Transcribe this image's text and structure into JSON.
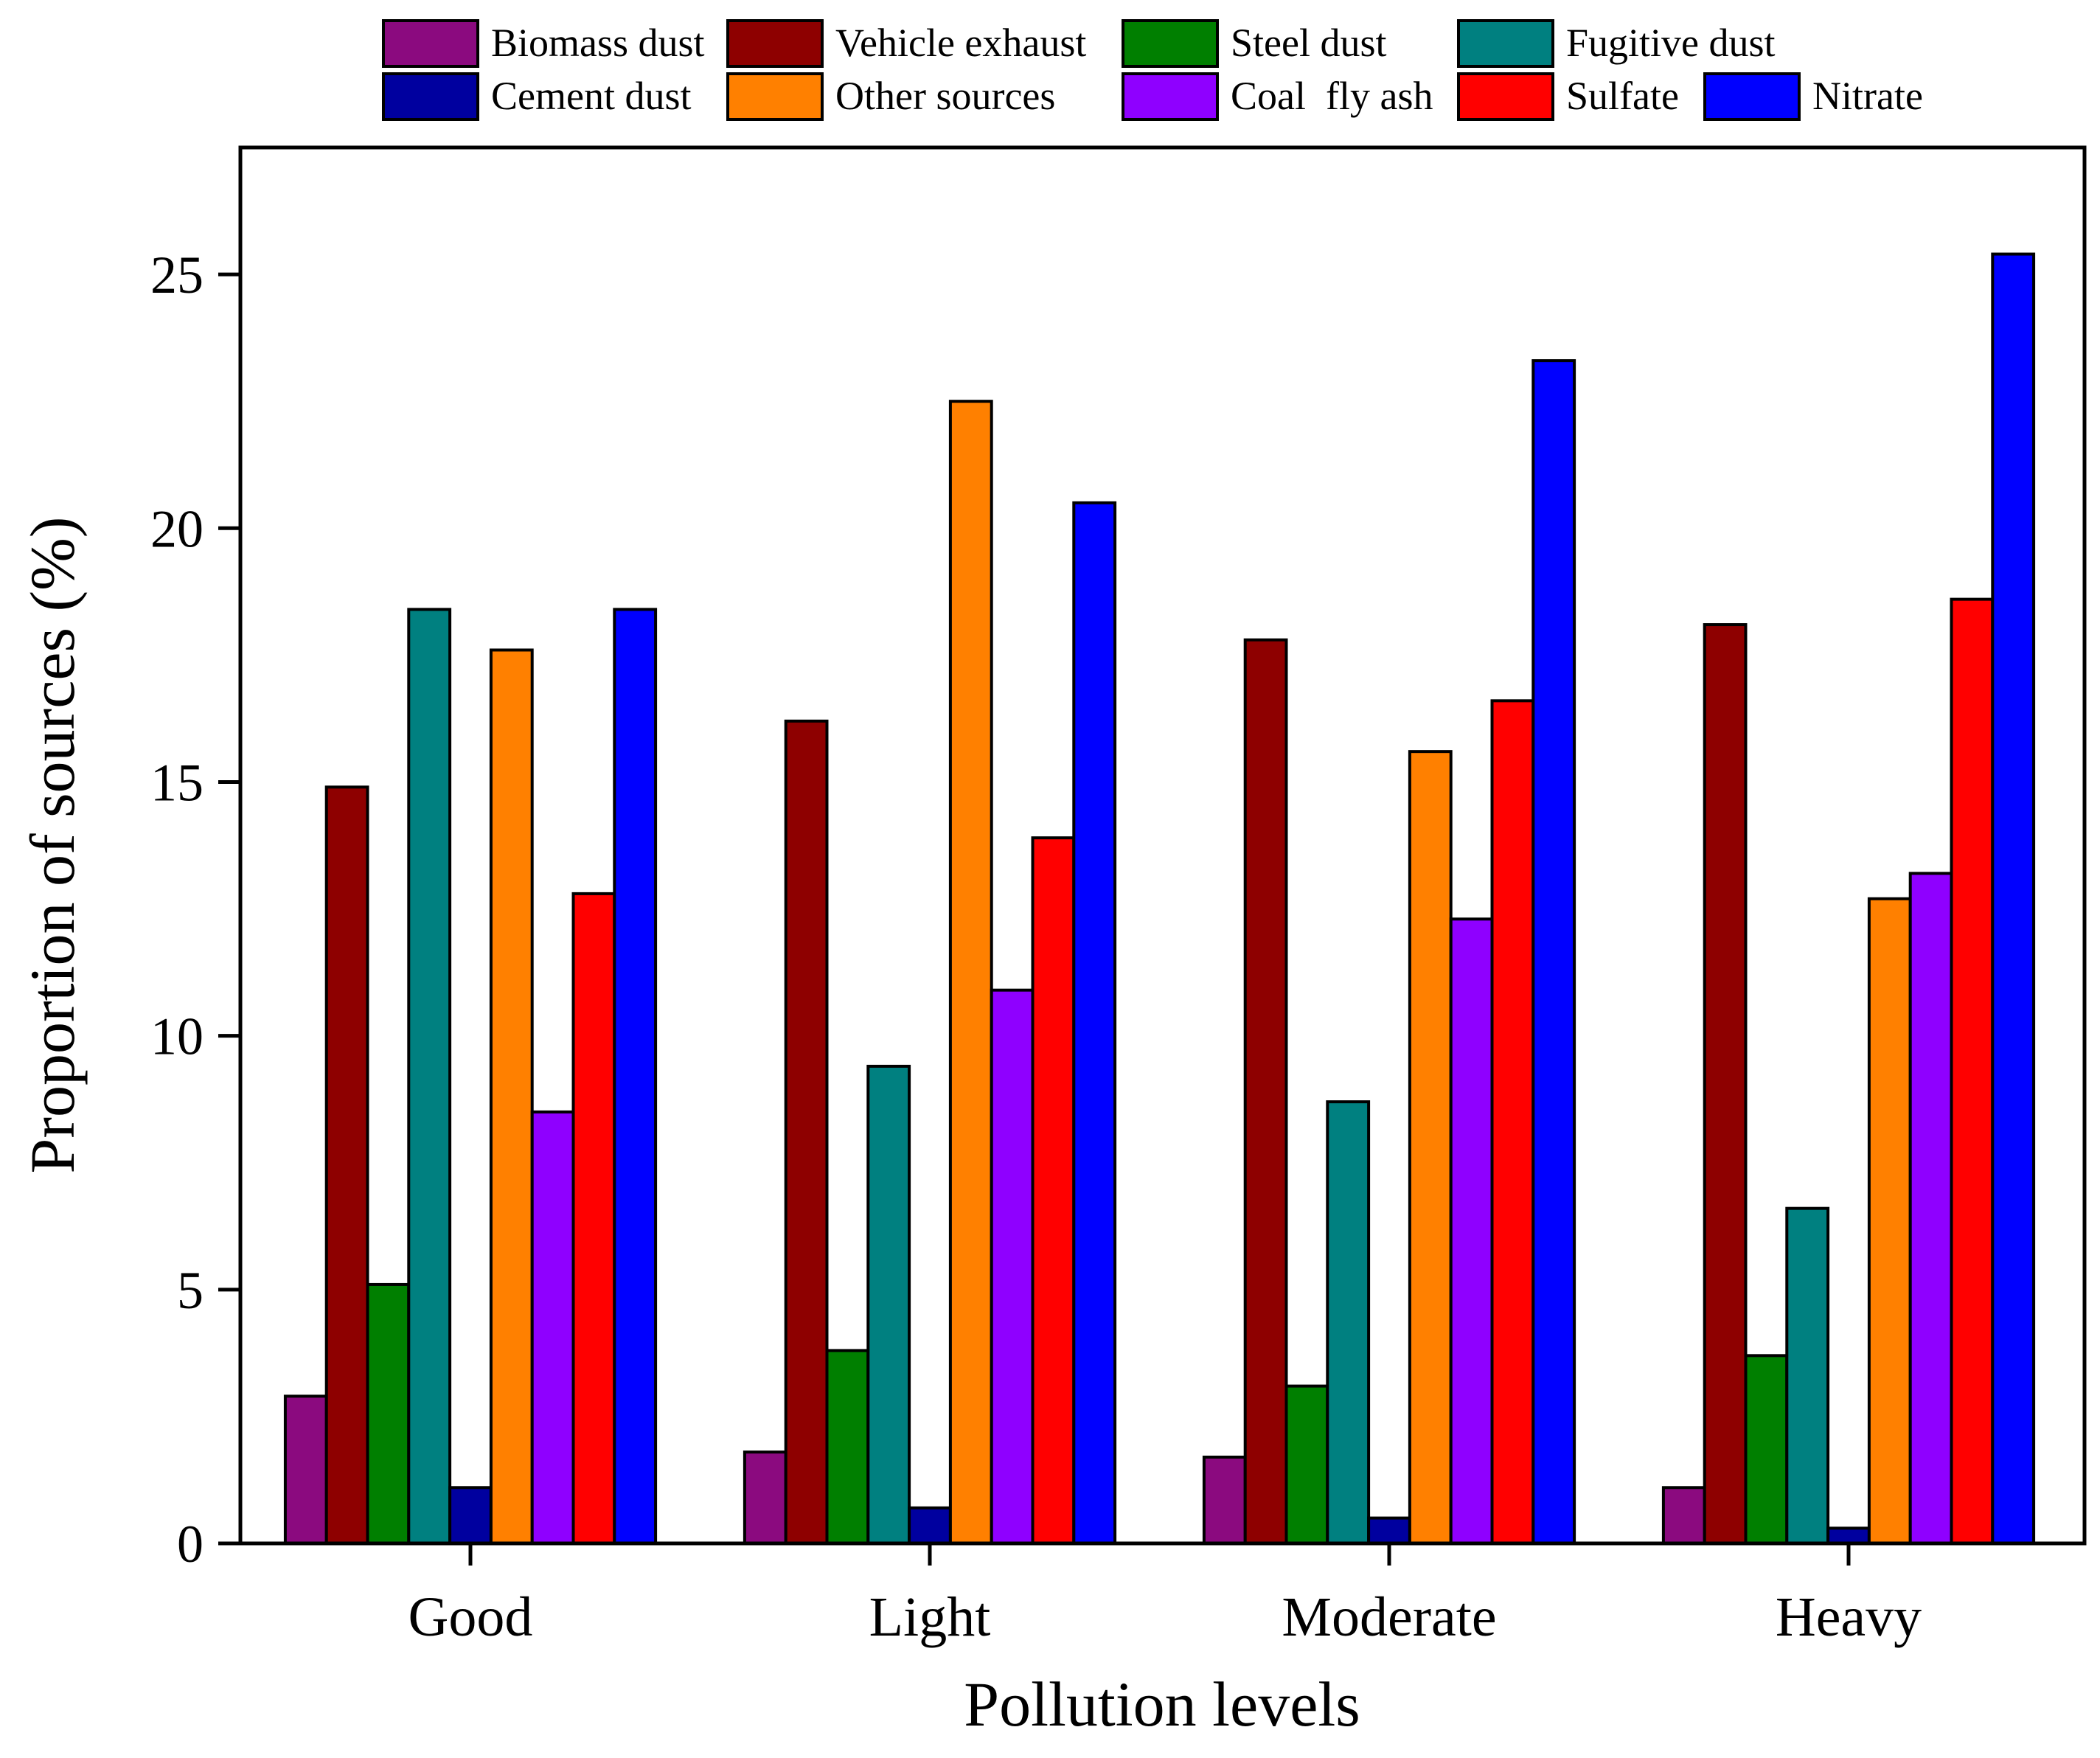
{
  "chart_data": {
    "type": "bar",
    "title": "",
    "xlabel": "Pollution levels",
    "ylabel": "Proportion of sources (%)",
    "ylim": [
      0,
      27.5
    ],
    "yticks": [
      0,
      5,
      10,
      15,
      20,
      25
    ],
    "grid": false,
    "legend_position": "top",
    "categories": [
      "Good",
      "Light",
      "Moderate",
      "Heavy"
    ],
    "series": [
      {
        "name": "Biomass dust",
        "color": "#8B0A7F",
        "values": [
          2.9,
          1.8,
          1.7,
          1.1
        ]
      },
      {
        "name": "Vehicle exhaust",
        "color": "#8E0000",
        "values": [
          14.9,
          16.2,
          17.8,
          18.1
        ]
      },
      {
        "name": "Steel dust",
        "color": "#007F00",
        "values": [
          5.1,
          3.8,
          3.1,
          3.7
        ]
      },
      {
        "name": "Fugitive dust",
        "color": "#008080",
        "values": [
          18.4,
          9.4,
          8.7,
          6.6
        ]
      },
      {
        "name": "Cement dust",
        "color": "#00009F",
        "values": [
          1.1,
          0.7,
          0.5,
          0.3
        ]
      },
      {
        "name": "Other sources",
        "color": "#FF8000",
        "values": [
          17.6,
          22.5,
          15.6,
          12.7
        ]
      },
      {
        "name": "Coal  fly ash",
        "color": "#8F00FF",
        "values": [
          8.5,
          10.9,
          12.3,
          13.2
        ]
      },
      {
        "name": "Sulfate",
        "color": "#FF0000",
        "values": [
          12.8,
          13.9,
          16.6,
          18.6
        ]
      },
      {
        "name": "Nitrate",
        "color": "#0000FF",
        "values": [
          18.4,
          20.5,
          23.3,
          25.4
        ]
      }
    ]
  }
}
